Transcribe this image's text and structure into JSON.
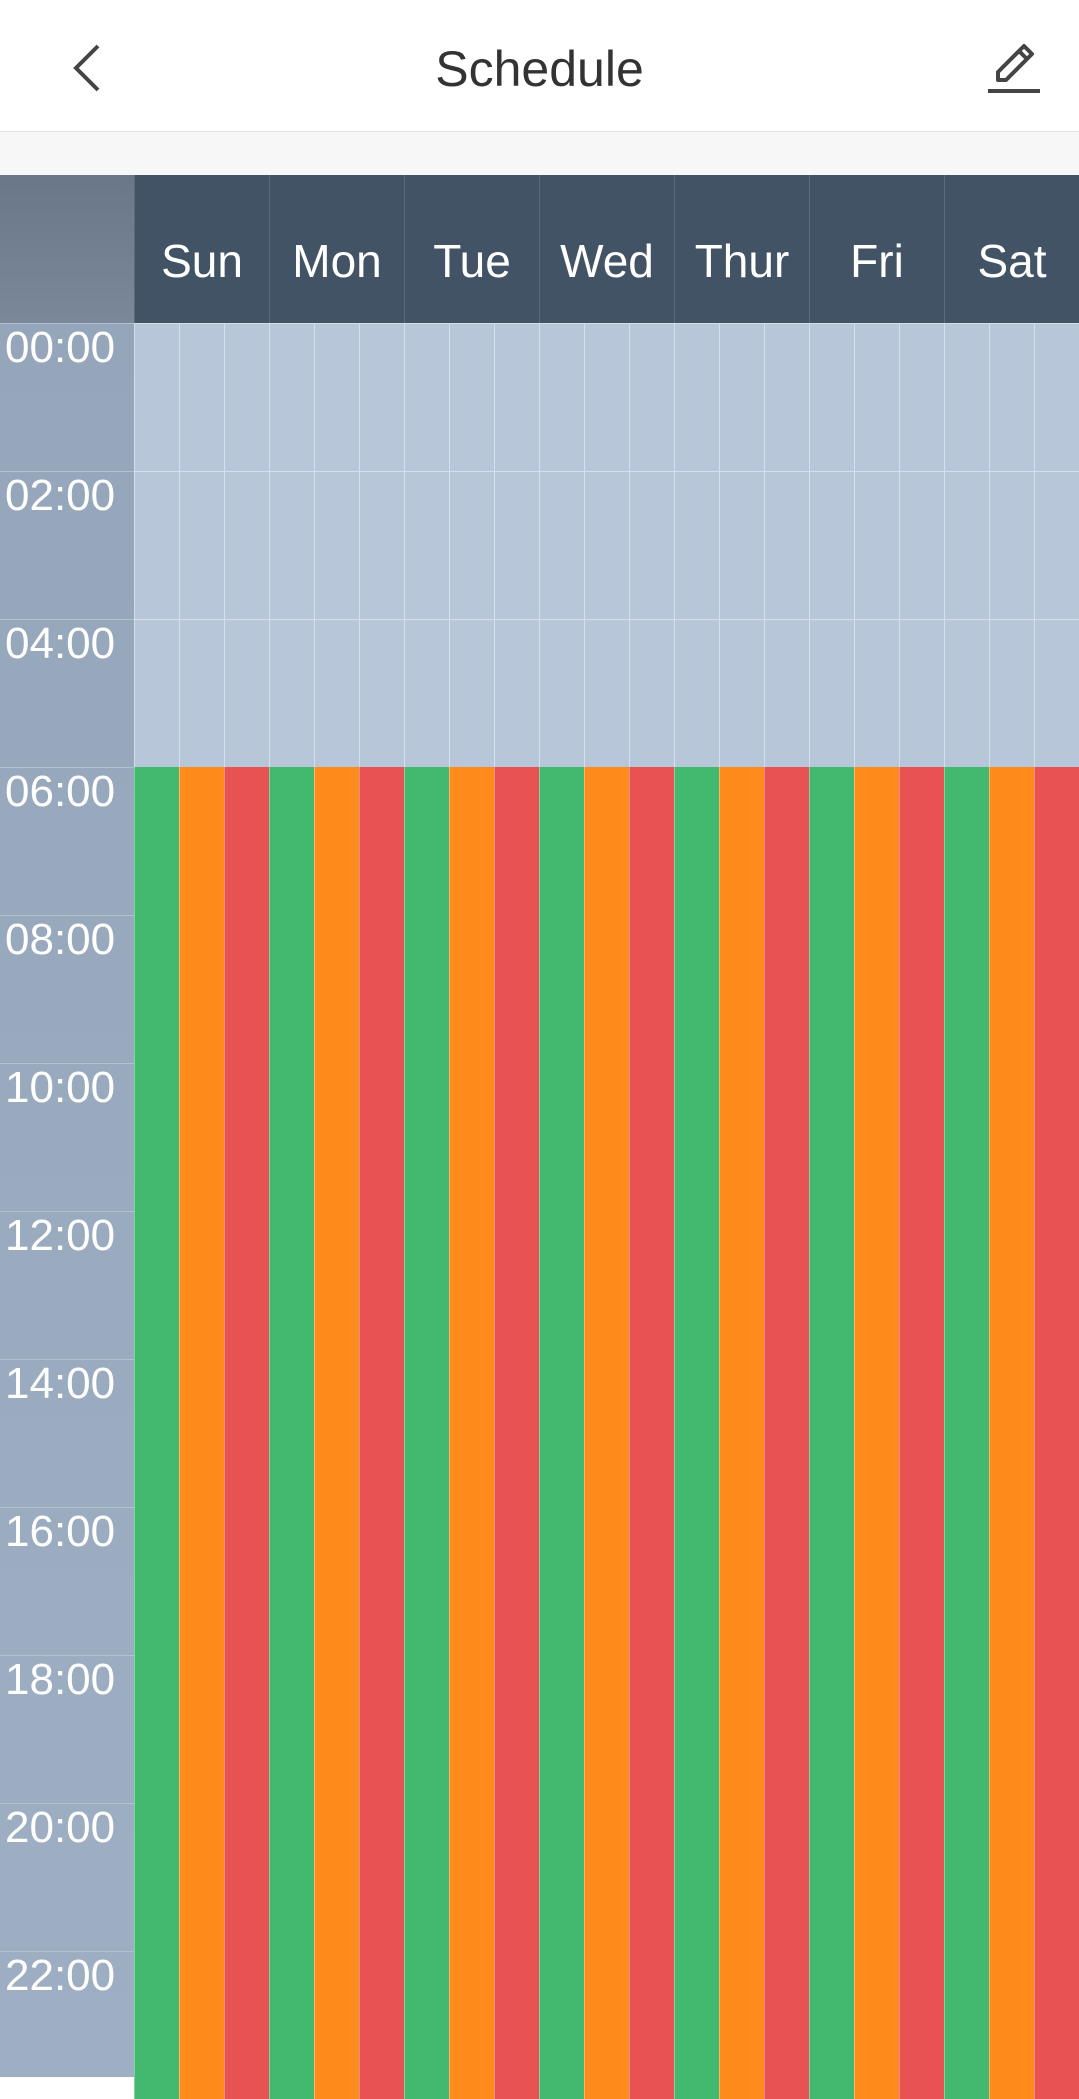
{
  "header": {
    "title": "Schedule"
  },
  "schedule": {
    "days": [
      "Sun",
      "Mon",
      "Tue",
      "Wed",
      "Thur",
      "Fri",
      "Sat"
    ],
    "times": [
      "00:00",
      "02:00",
      "04:00",
      "06:00",
      "08:00",
      "10:00",
      "12:00",
      "14:00",
      "16:00",
      "18:00",
      "20:00",
      "22:00"
    ]
  }
}
